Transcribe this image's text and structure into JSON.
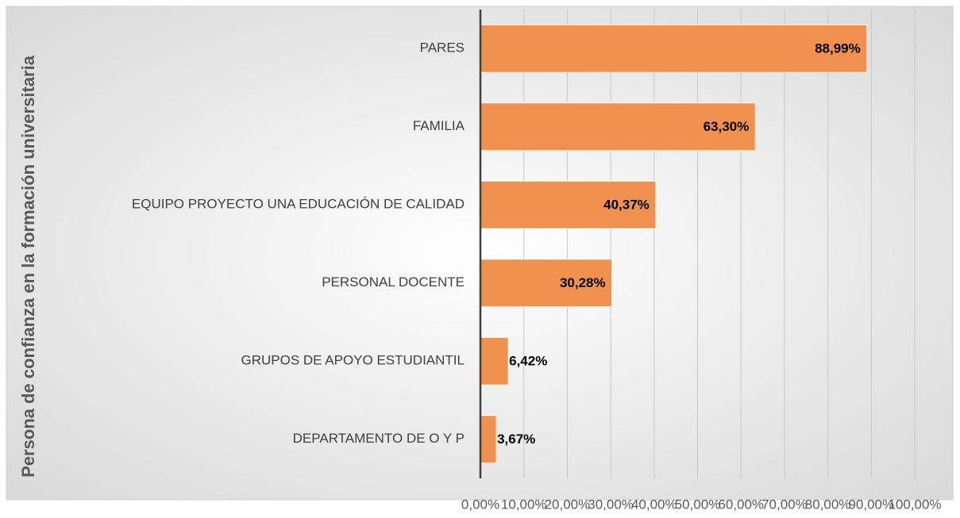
{
  "chart_data": {
    "type": "bar",
    "orientation": "horizontal",
    "y_label": "Persona de confianza en la formación universitaria",
    "categories": [
      "PARES",
      "FAMILIA",
      "EQUIPO PROYECTO UNA EDUCACIÓN DE CALIDAD",
      "PERSONAL DOCENTE",
      "GRUPOS DE APOYO ESTUDIANTIL",
      "DEPARTAMENTO DE O Y P"
    ],
    "values": [
      88.99,
      63.3,
      40.37,
      30.28,
      6.42,
      3.67
    ],
    "value_labels": [
      "88,99%",
      "63,30%",
      "40,37%",
      "30,28%",
      "6,42%",
      "3,67%"
    ],
    "color": "#f0914f",
    "xlim": [
      0,
      100
    ],
    "xticks": [
      {
        "value": 0,
        "label": "0,00%"
      },
      {
        "value": 10,
        "label": "10,00%"
      },
      {
        "value": 20,
        "label": "20,00%"
      },
      {
        "value": 30,
        "label": "30,00%"
      },
      {
        "value": 40,
        "label": "40,00%"
      },
      {
        "value": 50,
        "label": "50,00%"
      },
      {
        "value": 60,
        "label": "60,00%"
      },
      {
        "value": 70,
        "label": "70,00%"
      },
      {
        "value": 80,
        "label": "80,00%"
      },
      {
        "value": 90,
        "label": "90,00%"
      },
      {
        "value": 100,
        "label": "100,00%"
      }
    ],
    "grid": true
  }
}
